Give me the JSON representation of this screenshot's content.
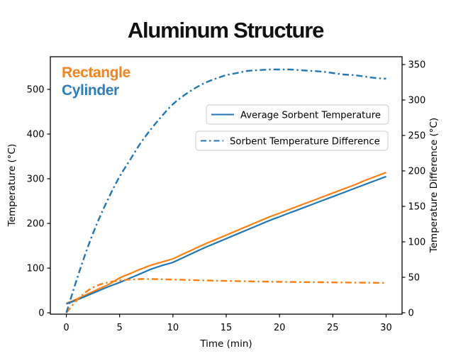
{
  "chart_data": {
    "type": "line",
    "title": "Aluminum Structure",
    "xlabel": "Time (min)",
    "ylabel_left": "Temperature (°C)",
    "ylabel_right": "Temperature Difference (°C)",
    "xlim": [
      -1.5,
      31.5
    ],
    "ylim_left": [
      -3,
      573
    ],
    "ylim_right": [
      -2,
      361
    ],
    "xticks": [
      0,
      5,
      10,
      15,
      20,
      25,
      30
    ],
    "yticks_left": [
      0,
      100,
      200,
      300,
      400,
      500
    ],
    "yticks_right": [
      0,
      50,
      100,
      150,
      200,
      250,
      300,
      350
    ],
    "grid": false,
    "x": [
      0,
      1,
      2,
      3,
      4,
      5,
      6,
      7,
      8,
      9,
      10,
      11,
      12,
      13,
      14,
      15,
      16,
      17,
      18,
      19,
      20,
      21,
      22,
      23,
      24,
      25,
      26,
      27,
      28,
      29,
      30
    ],
    "series": [
      {
        "name": "Rectangle Average Sorbent Temperature",
        "key": "rectangle-average-temperature-line",
        "axis": "left",
        "style": "solid",
        "color": "#ff7f0e",
        "values": [
          21,
          31,
          42,
          53,
          64,
          78,
          88,
          98,
          107,
          114,
          121,
          132,
          143,
          154,
          164,
          174,
          184,
          194,
          204,
          214,
          223,
          232,
          241,
          250,
          259,
          268,
          277,
          286,
          296,
          305,
          314
        ]
      },
      {
        "name": "Cylinder Average Sorbent Temperature",
        "key": "cylinder-average-temperature-line",
        "axis": "left",
        "style": "solid",
        "color": "#1f77b4",
        "values": [
          20,
          29,
          39,
          49,
          59,
          68,
          78,
          88,
          98,
          106,
          113,
          124,
          135,
          146,
          156,
          166,
          176,
          186,
          196,
          206,
          215,
          224,
          233,
          242,
          251,
          260,
          269,
          278,
          287,
          296,
          305
        ]
      },
      {
        "name": "Rectangle Sorbent Temperature Difference",
        "key": "rectangle-temperature-difference-line",
        "axis": "right",
        "style": "dashdot",
        "color": "#ff7f0e",
        "values": [
          0,
          18,
          31,
          39,
          43,
          45.5,
          46.8,
          47.5,
          47.5,
          47.2,
          46.8,
          46.4,
          46,
          45.6,
          45.2,
          44.9,
          44.6,
          44.3,
          44,
          43.8,
          43.6,
          43.4,
          43.2,
          43.1,
          43,
          42.8,
          42.7,
          42.5,
          42.4,
          42.2,
          42
        ]
      },
      {
        "name": "Cylinder Sorbent Temperature Difference",
        "key": "cylinder-temperature-difference-line",
        "axis": "right",
        "style": "dashdot",
        "color": "#1f77b4",
        "values": [
          0,
          48,
          92,
          130,
          163,
          192,
          216,
          240,
          260,
          278,
          294,
          306,
          316,
          324,
          330,
          335,
          338,
          341,
          342,
          343,
          343,
          343,
          342,
          341,
          340,
          338,
          336,
          335,
          333,
          331,
          330
        ]
      }
    ],
    "annotations": [
      {
        "text": "Rectangle",
        "color": "#f5821e"
      },
      {
        "text": "Cylinder",
        "color": "#2e7dbc"
      }
    ],
    "legend_entries": [
      {
        "label": "Average Sorbent Temperature",
        "line_style": "solid",
        "line_color": "#1f77b4"
      },
      {
        "label": "Sorbent Temperature Difference",
        "line_style": "dashdot",
        "line_color": "#1f77b4"
      }
    ],
    "legend_position": "upper-center-right, two stacked boxes"
  }
}
